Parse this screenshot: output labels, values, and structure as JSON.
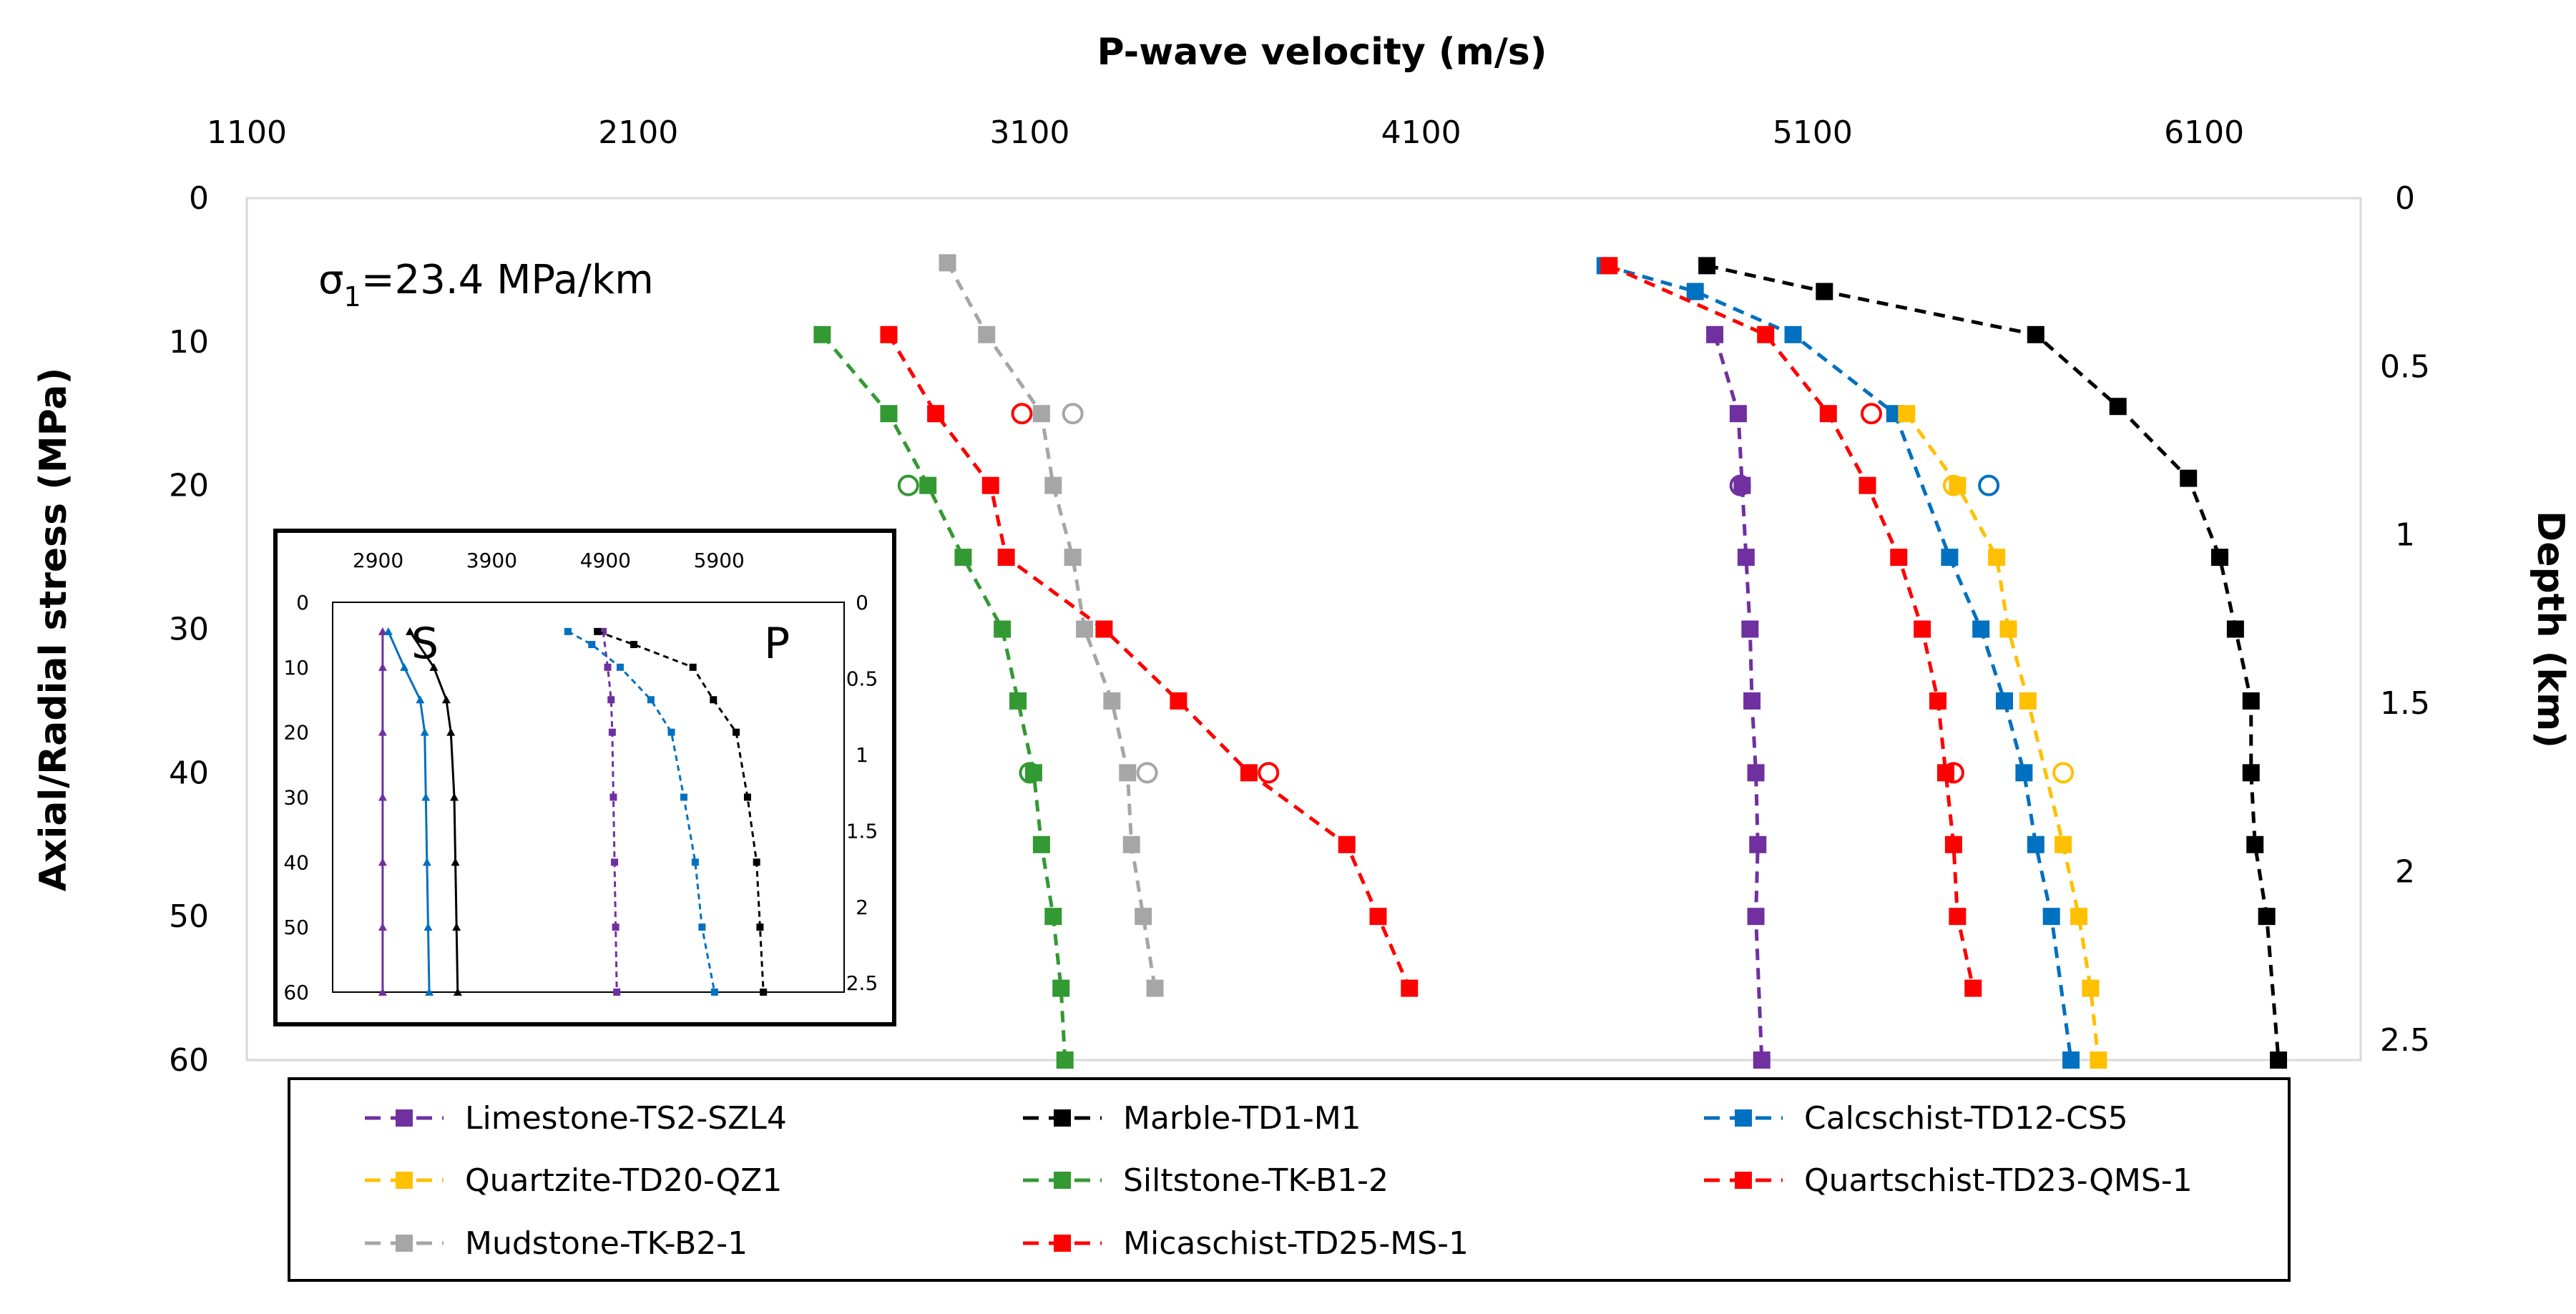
{
  "chart_data": {
    "type": "line",
    "title": "",
    "xlabel": "P-wave velocity (m/s)",
    "ylabel": "Axial/Radial stress (MPa)",
    "y2label": "Depth (km)",
    "xlim": [
      1100,
      6500
    ],
    "ylim": [
      0,
      60
    ],
    "y2lim": [
      0,
      2.56
    ],
    "x_ticks": [
      "1100",
      "2100",
      "3100",
      "4100",
      "5100",
      "6100"
    ],
    "y_ticks": [
      "0",
      "10",
      "20",
      "30",
      "40",
      "50",
      "60"
    ],
    "y2_ticks": [
      {
        "label": "0",
        "value": 0
      },
      {
        "label": "0.5",
        "value": 0.5
      },
      {
        "label": "1",
        "value": 1
      },
      {
        "label": "1.5",
        "value": 1.5
      },
      {
        "label": "2",
        "value": 2
      },
      {
        "label": "2.5",
        "value": 2.5
      }
    ],
    "annotation": {
      "base": "σ",
      "sub": "1",
      "rest": "=23.4 MPa/km"
    },
    "legend_position": "bottom",
    "series": [
      {
        "name": "Limestone-TS2-SZL4",
        "color": "#7030a0",
        "points": [
          [
            4850,
            9.5
          ],
          [
            4910,
            15
          ],
          [
            4920,
            20
          ],
          [
            4930,
            25
          ],
          [
            4940,
            30
          ],
          [
            4945,
            35
          ],
          [
            4955,
            40
          ],
          [
            4960,
            45
          ],
          [
            4955,
            50
          ],
          [
            4970,
            60
          ]
        ],
        "open_points": [
          [
            4915,
            20
          ]
        ]
      },
      {
        "name": "Marble-TD1-M1",
        "color": "#000000",
        "points": [
          [
            4830,
            4.7
          ],
          [
            5130,
            6.5
          ],
          [
            5670,
            9.5
          ],
          [
            5880,
            14.5
          ],
          [
            6060,
            19.5
          ],
          [
            6140,
            25
          ],
          [
            6180,
            30
          ],
          [
            6220,
            35
          ],
          [
            6220,
            40
          ],
          [
            6230,
            45
          ],
          [
            6260,
            50
          ],
          [
            6290,
            60
          ]
        ],
        "open_points": []
      },
      {
        "name": "Calcschist-TD12-CS5",
        "color": "#0070c0",
        "points": [
          [
            4570,
            4.7
          ],
          [
            4800,
            6.5
          ],
          [
            5050,
            9.5
          ],
          [
            5310,
            15
          ],
          [
            5450,
            25
          ],
          [
            5530,
            30
          ],
          [
            5590,
            35
          ],
          [
            5640,
            40
          ],
          [
            5670,
            45
          ],
          [
            5710,
            50
          ],
          [
            5760,
            60
          ]
        ],
        "open_points": [
          [
            5550,
            20
          ]
        ]
      },
      {
        "name": "Quartzite-TD20-QZ1",
        "color": "#ffc000",
        "points": [
          [
            5340,
            15
          ],
          [
            5470,
            20
          ],
          [
            5570,
            25
          ],
          [
            5600,
            30
          ],
          [
            5650,
            35
          ],
          [
            5740,
            45
          ],
          [
            5780,
            50
          ],
          [
            5810,
            55
          ],
          [
            5830,
            60
          ]
        ],
        "open_points": [
          [
            5460,
            20
          ],
          [
            5740,
            40
          ]
        ]
      },
      {
        "name": "Siltstone-TK-B1-2",
        "color": "#339933",
        "points": [
          [
            2570,
            9.5
          ],
          [
            2740,
            15
          ],
          [
            2840,
            20
          ],
          [
            2930,
            25
          ],
          [
            3030,
            30
          ],
          [
            3070,
            35
          ],
          [
            3110,
            40
          ],
          [
            3130,
            45
          ],
          [
            3160,
            50
          ],
          [
            3180,
            55
          ],
          [
            3190,
            60
          ]
        ],
        "open_points": [
          [
            2790,
            20
          ],
          [
            3100,
            40
          ]
        ]
      },
      {
        "name": "Quartschist-TD23-QMS-1",
        "color": "#ff0000",
        "points": [
          [
            4580,
            4.7
          ],
          [
            4980,
            9.5
          ],
          [
            5140,
            15
          ],
          [
            5240,
            20
          ],
          [
            5320,
            25
          ],
          [
            5380,
            30
          ],
          [
            5420,
            35
          ],
          [
            5440,
            40
          ],
          [
            5460,
            45
          ],
          [
            5470,
            50
          ],
          [
            5510,
            55
          ]
        ],
        "open_points": [
          [
            5250,
            15
          ],
          [
            5460,
            40
          ]
        ]
      },
      {
        "name": "Mudstone-TK-B2-1",
        "color": "#a6a6a6",
        "points": [
          [
            2890,
            4.5
          ],
          [
            2990,
            9.5
          ],
          [
            3130,
            15
          ],
          [
            3160,
            20
          ],
          [
            3210,
            25
          ],
          [
            3240,
            30
          ],
          [
            3310,
            35
          ],
          [
            3350,
            40
          ],
          [
            3360,
            45
          ],
          [
            3390,
            50
          ],
          [
            3420,
            55
          ]
        ],
        "open_points": [
          [
            3210,
            15
          ],
          [
            3400,
            40
          ]
        ]
      },
      {
        "name": "Micaschist-TD25-MS-1",
        "color": "#ff0000",
        "points": [
          [
            2740,
            9.5
          ],
          [
            2860,
            15
          ],
          [
            3000,
            20
          ],
          [
            3040,
            25
          ],
          [
            3290,
            30
          ],
          [
            3480,
            35
          ],
          [
            3660,
            40
          ],
          [
            3910,
            45
          ],
          [
            3990,
            50
          ],
          [
            4070,
            55
          ]
        ],
        "open_points": [
          [
            3080,
            15
          ],
          [
            3710,
            40
          ]
        ]
      }
    ],
    "inset": {
      "xlim": [
        2500,
        7000
      ],
      "ylim": [
        0,
        60
      ],
      "x_ticks": [
        "2900",
        "3900",
        "4900",
        "5900"
      ],
      "y_ticks": [
        "0",
        "10",
        "20",
        "30",
        "40",
        "50",
        "60"
      ],
      "y2_ticks": [
        {
          "label": "0",
          "value": 0
        },
        {
          "label": "0.5",
          "value": 0.5
        },
        {
          "label": "1",
          "value": 1
        },
        {
          "label": "1.5",
          "value": 1.5
        },
        {
          "label": "2",
          "value": 2
        },
        {
          "label": "2.5",
          "value": 2.5
        }
      ],
      "y2max": 2.56,
      "labels": [
        "S",
        "P"
      ],
      "series": [
        {
          "color": "#7030a0",
          "dashed": false,
          "points": [
            [
              2940,
              4.5
            ],
            [
              2940,
              10
            ],
            [
              2940,
              20
            ],
            [
              2940,
              30
            ],
            [
              2940,
              40
            ],
            [
              2940,
              50
            ],
            [
              2940,
              60
            ]
          ]
        },
        {
          "color": "#0070c0",
          "dashed": false,
          "points": [
            [
              2990,
              4.5
            ],
            [
              3130,
              10
            ],
            [
              3270,
              15
            ],
            [
              3310,
              20
            ],
            [
              3320,
              30
            ],
            [
              3330,
              40
            ],
            [
              3340,
              50
            ],
            [
              3350,
              60
            ]
          ]
        },
        {
          "color": "#000000",
          "dashed": false,
          "points": [
            [
              3180,
              4.5
            ],
            [
              3390,
              10
            ],
            [
              3500,
              15
            ],
            [
              3540,
              20
            ],
            [
              3570,
              30
            ],
            [
              3580,
              40
            ],
            [
              3590,
              50
            ],
            [
              3600,
              60
            ]
          ]
        },
        {
          "color": "#7030a0",
          "dashed": true,
          "points": [
            [
              4880,
              4.5
            ],
            [
              4920,
              10
            ],
            [
              4950,
              15
            ],
            [
              4960,
              20
            ],
            [
              4970,
              30
            ],
            [
              4980,
              40
            ],
            [
              4990,
              50
            ],
            [
              5000,
              60
            ]
          ]
        },
        {
          "color": "#0070c0",
          "dashed": true,
          "points": [
            [
              4570,
              4.5
            ],
            [
              4780,
              6.5
            ],
            [
              5030,
              10
            ],
            [
              5300,
              15
            ],
            [
              5480,
              20
            ],
            [
              5590,
              30
            ],
            [
              5690,
              40
            ],
            [
              5750,
              50
            ],
            [
              5860,
              60
            ]
          ]
        },
        {
          "color": "#000000",
          "dashed": true,
          "points": [
            [
              4830,
              4.5
            ],
            [
              5150,
              6.5
            ],
            [
              5670,
              10
            ],
            [
              5850,
              15
            ],
            [
              6050,
              20
            ],
            [
              6150,
              30
            ],
            [
              6230,
              40
            ],
            [
              6260,
              50
            ],
            [
              6290,
              60
            ]
          ]
        }
      ]
    }
  }
}
